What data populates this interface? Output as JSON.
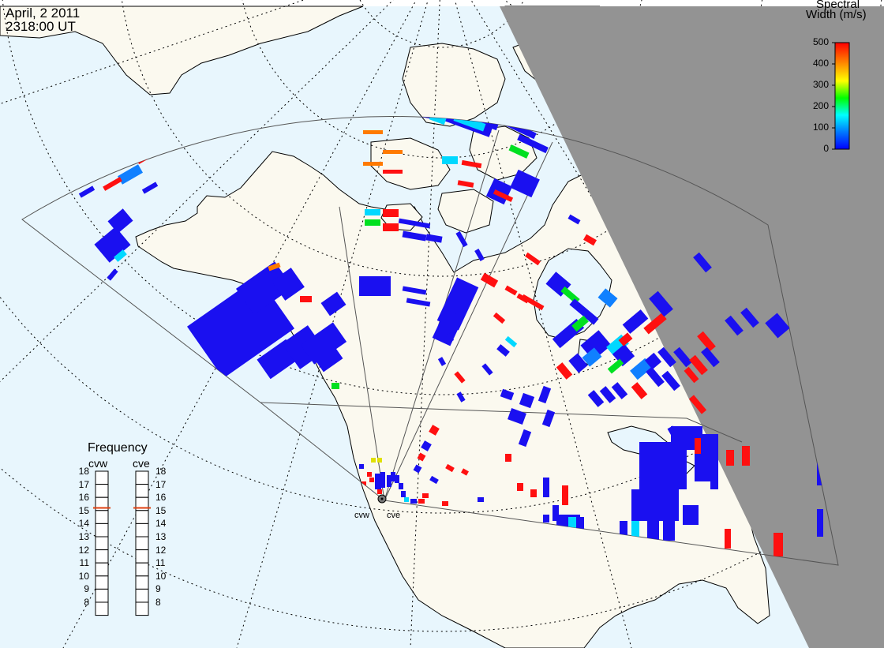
{
  "header": {
    "date": "April, 2 2011",
    "time": "2318:00 UT"
  },
  "colorbar": {
    "title_line1": "Spectral",
    "title_line2": "Width (m/s)",
    "ticks": [
      "500",
      "400",
      "300",
      "200",
      "100",
      "0"
    ],
    "range": [
      0,
      500
    ],
    "colors": [
      "#0000ff",
      "#0080ff",
      "#00ffff",
      "#00ff00",
      "#ffff00",
      "#ff8000",
      "#ff0000"
    ]
  },
  "frequency_panel": {
    "title": "Frequency",
    "radars": [
      {
        "name": "cvw",
        "selected": 15.2
      },
      {
        "name": "cve",
        "selected": 15.2
      }
    ],
    "scale": [
      "18",
      "17",
      "16",
      "15",
      "14",
      "13",
      "12",
      "11",
      "10",
      "9",
      "8"
    ]
  },
  "sites": [
    {
      "name": "cvw"
    },
    {
      "name": "cve"
    }
  ],
  "colors": {
    "ocean": "#e8f6fd",
    "land": "#fbf9ef",
    "night": "#939393",
    "coast": "#000000",
    "grid": "#000000",
    "low_width": "#0000ff",
    "high_width": "#ff0000"
  }
}
